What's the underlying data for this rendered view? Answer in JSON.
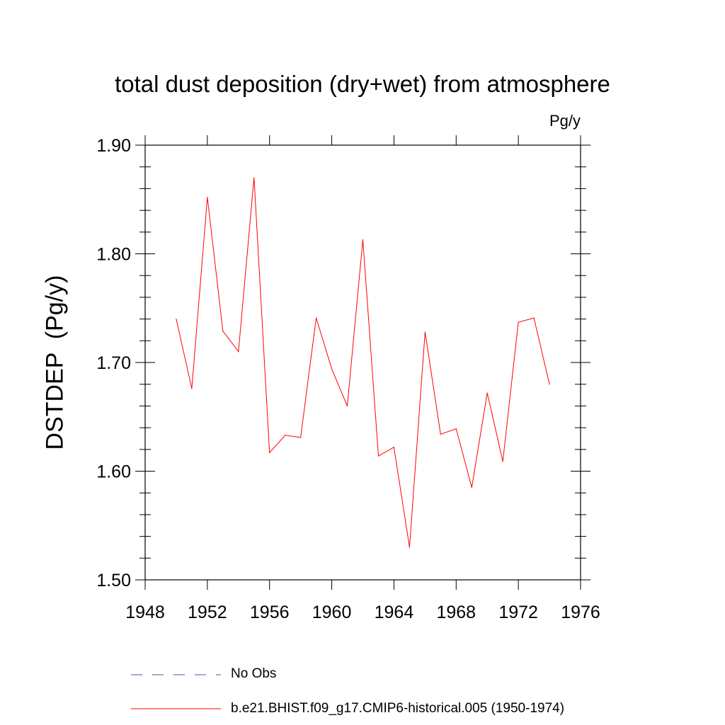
{
  "chart_data": {
    "type": "line",
    "title": "total dust deposition (dry+wet) from atmosphere",
    "units_label": "Pg/y",
    "ylabel": "DSTDEP  (Pg/y)",
    "xlabel": "",
    "xlim": [
      1948,
      1976
    ],
    "ylim": [
      1.5,
      1.9
    ],
    "x_ticks": [
      1948,
      1952,
      1956,
      1960,
      1964,
      1968,
      1972,
      1976
    ],
    "x_tick_labels": [
      "1948",
      "1952",
      "1956",
      "1960",
      "1964",
      "1968",
      "1972",
      "1976"
    ],
    "y_ticks": [
      1.5,
      1.6,
      1.7,
      1.8,
      1.9
    ],
    "y_tick_labels": [
      "1.50",
      "1.60",
      "1.70",
      "1.80",
      "1.90"
    ],
    "grid": false,
    "legend_position": "bottom",
    "series": [
      {
        "name": "b.e21.BHIST.f09_g17.CMIP6-historical.005 (1950-1974)",
        "color": "#ff0000",
        "style": "solid",
        "x": [
          1950,
          1951,
          1952,
          1953,
          1954,
          1955,
          1956,
          1957,
          1958,
          1959,
          1960,
          1961,
          1962,
          1963,
          1964,
          1965,
          1966,
          1967,
          1968,
          1969,
          1970,
          1971,
          1972,
          1973,
          1974
        ],
        "values": [
          1.74,
          1.676,
          1.852,
          1.729,
          1.71,
          1.87,
          1.617,
          1.633,
          1.631,
          1.741,
          1.694,
          1.66,
          1.813,
          1.614,
          1.622,
          1.53,
          1.728,
          1.634,
          1.639,
          1.585,
          1.672,
          1.609,
          1.737,
          1.741,
          1.68
        ]
      }
    ],
    "legend": [
      {
        "label": "No Obs",
        "color": "#5050a0",
        "style": "dashed"
      },
      {
        "label": "b.e21.BHIST.f09_g17.CMIP6-historical.005 (1950-1974)",
        "color": "#ff0000",
        "style": "solid"
      }
    ]
  }
}
